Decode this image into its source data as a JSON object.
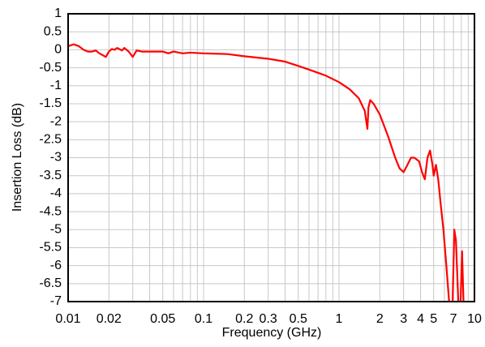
{
  "chart_data": {
    "type": "line",
    "xlabel": "Frequency (GHz)",
    "ylabel": "Insertion Loss (dB)",
    "xlog": true,
    "grid": true,
    "color": "#ff0000",
    "xlim": [
      0.01,
      10
    ],
    "ylim": [
      -7,
      1
    ],
    "xticks": [
      0.01,
      0.02,
      0.05,
      0.1,
      0.2,
      0.3,
      0.5,
      1,
      2,
      3,
      4,
      5,
      7,
      10
    ],
    "xgrid": [
      0.01,
      0.02,
      0.03,
      0.04,
      0.05,
      0.06,
      0.07,
      0.08,
      0.09,
      0.1,
      0.2,
      0.3,
      0.4,
      0.5,
      0.6,
      0.7,
      0.8,
      0.9,
      1,
      2,
      3,
      4,
      5,
      6,
      7,
      8,
      9,
      10
    ],
    "yticks": [
      1,
      0.5,
      0,
      -0.5,
      -1,
      -1.5,
      -2,
      -2.5,
      -3,
      -3.5,
      -4,
      -4.5,
      -5,
      -5.5,
      -6,
      -6.5,
      -7
    ],
    "x": [
      0.01,
      0.011,
      0.012,
      0.013,
      0.014,
      0.015,
      0.016,
      0.017,
      0.018,
      0.019,
      0.02,
      0.021,
      0.022,
      0.023,
      0.025,
      0.026,
      0.028,
      0.03,
      0.032,
      0.035,
      0.04,
      0.05,
      0.055,
      0.06,
      0.07,
      0.08,
      0.1,
      0.15,
      0.2,
      0.3,
      0.4,
      0.5,
      0.6,
      0.8,
      1,
      1.2,
      1.4,
      1.55,
      1.62,
      1.65,
      1.7,
      1.8,
      2,
      2.3,
      2.6,
      2.8,
      3,
      3.2,
      3.4,
      3.6,
      3.9,
      4.1,
      4.3,
      4.5,
      4.7,
      4.9,
      5,
      5.2,
      5.4,
      5.6,
      5.9,
      6.2,
      6.5,
      6.7,
      6.9,
      7.1,
      7.3,
      7.6,
      7.8,
      7.9,
      8.1,
      8.3
    ],
    "values": [
      0.1,
      0.15,
      0.1,
      0,
      -0.05,
      -0.05,
      -0.02,
      -0.1,
      -0.15,
      -0.2,
      -0.05,
      0.02,
      0,
      0.05,
      -0.02,
      0.05,
      -0.05,
      -0.2,
      -0.02,
      -0.05,
      -0.05,
      -0.05,
      -0.1,
      -0.05,
      -0.1,
      -0.08,
      -0.1,
      -0.12,
      -0.18,
      -0.25,
      -0.33,
      -0.45,
      -0.55,
      -0.72,
      -0.9,
      -1.1,
      -1.35,
      -1.7,
      -2.2,
      -1.6,
      -1.4,
      -1.5,
      -1.8,
      -2.4,
      -3,
      -3.3,
      -3.4,
      -3.2,
      -3,
      -3,
      -3.1,
      -3.4,
      -3.6,
      -3,
      -2.8,
      -3.2,
      -3.5,
      -3.2,
      -3.6,
      -4.2,
      -5,
      -6,
      -7,
      null,
      -7,
      -5,
      -5.3,
      -7,
      null,
      -7,
      -5.6,
      -7
    ]
  }
}
